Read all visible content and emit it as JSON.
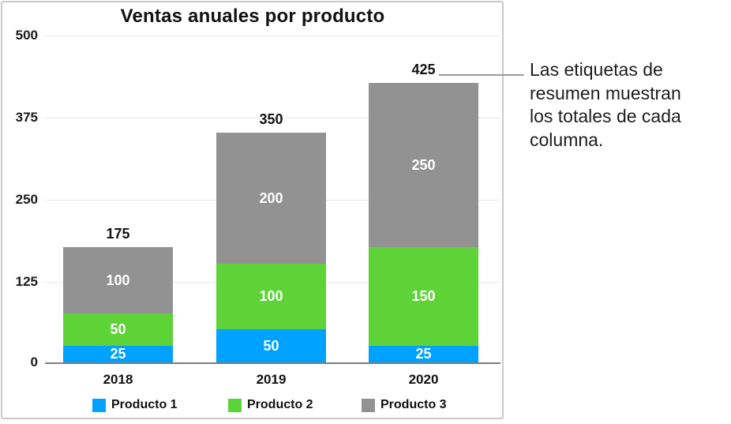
{
  "figure": {
    "callout": {
      "text": "Las etiquetas de\nresumen muestran\nlos totales de cada\ncolumna."
    }
  },
  "chart_data": {
    "type": "bar",
    "stacked": true,
    "title": "Ventas anuales por producto",
    "categories": [
      "2018",
      "2019",
      "2020"
    ],
    "series": [
      {
        "name": "Producto 1",
        "color": "#00A2FF",
        "values": [
          25,
          50,
          25
        ]
      },
      {
        "name": "Producto 2",
        "color": "#5DD338",
        "values": [
          50,
          100,
          150
        ]
      },
      {
        "name": "Producto 3",
        "color": "#929292",
        "values": [
          100,
          200,
          250
        ]
      }
    ],
    "totals": [
      175,
      350,
      425
    ],
    "xlabel": "",
    "ylabel": "",
    "ylim": [
      0,
      500
    ],
    "yticks": [
      500,
      375,
      250,
      125,
      0
    ],
    "grid": true,
    "legend_position": "bottom",
    "colors": {
      "grid": "#e8e8e8",
      "axis": "#7d7d7d",
      "frame_border": "#c9c9c9",
      "callout_line": "#9b9b9b",
      "segment_label": "#ffffff"
    }
  }
}
